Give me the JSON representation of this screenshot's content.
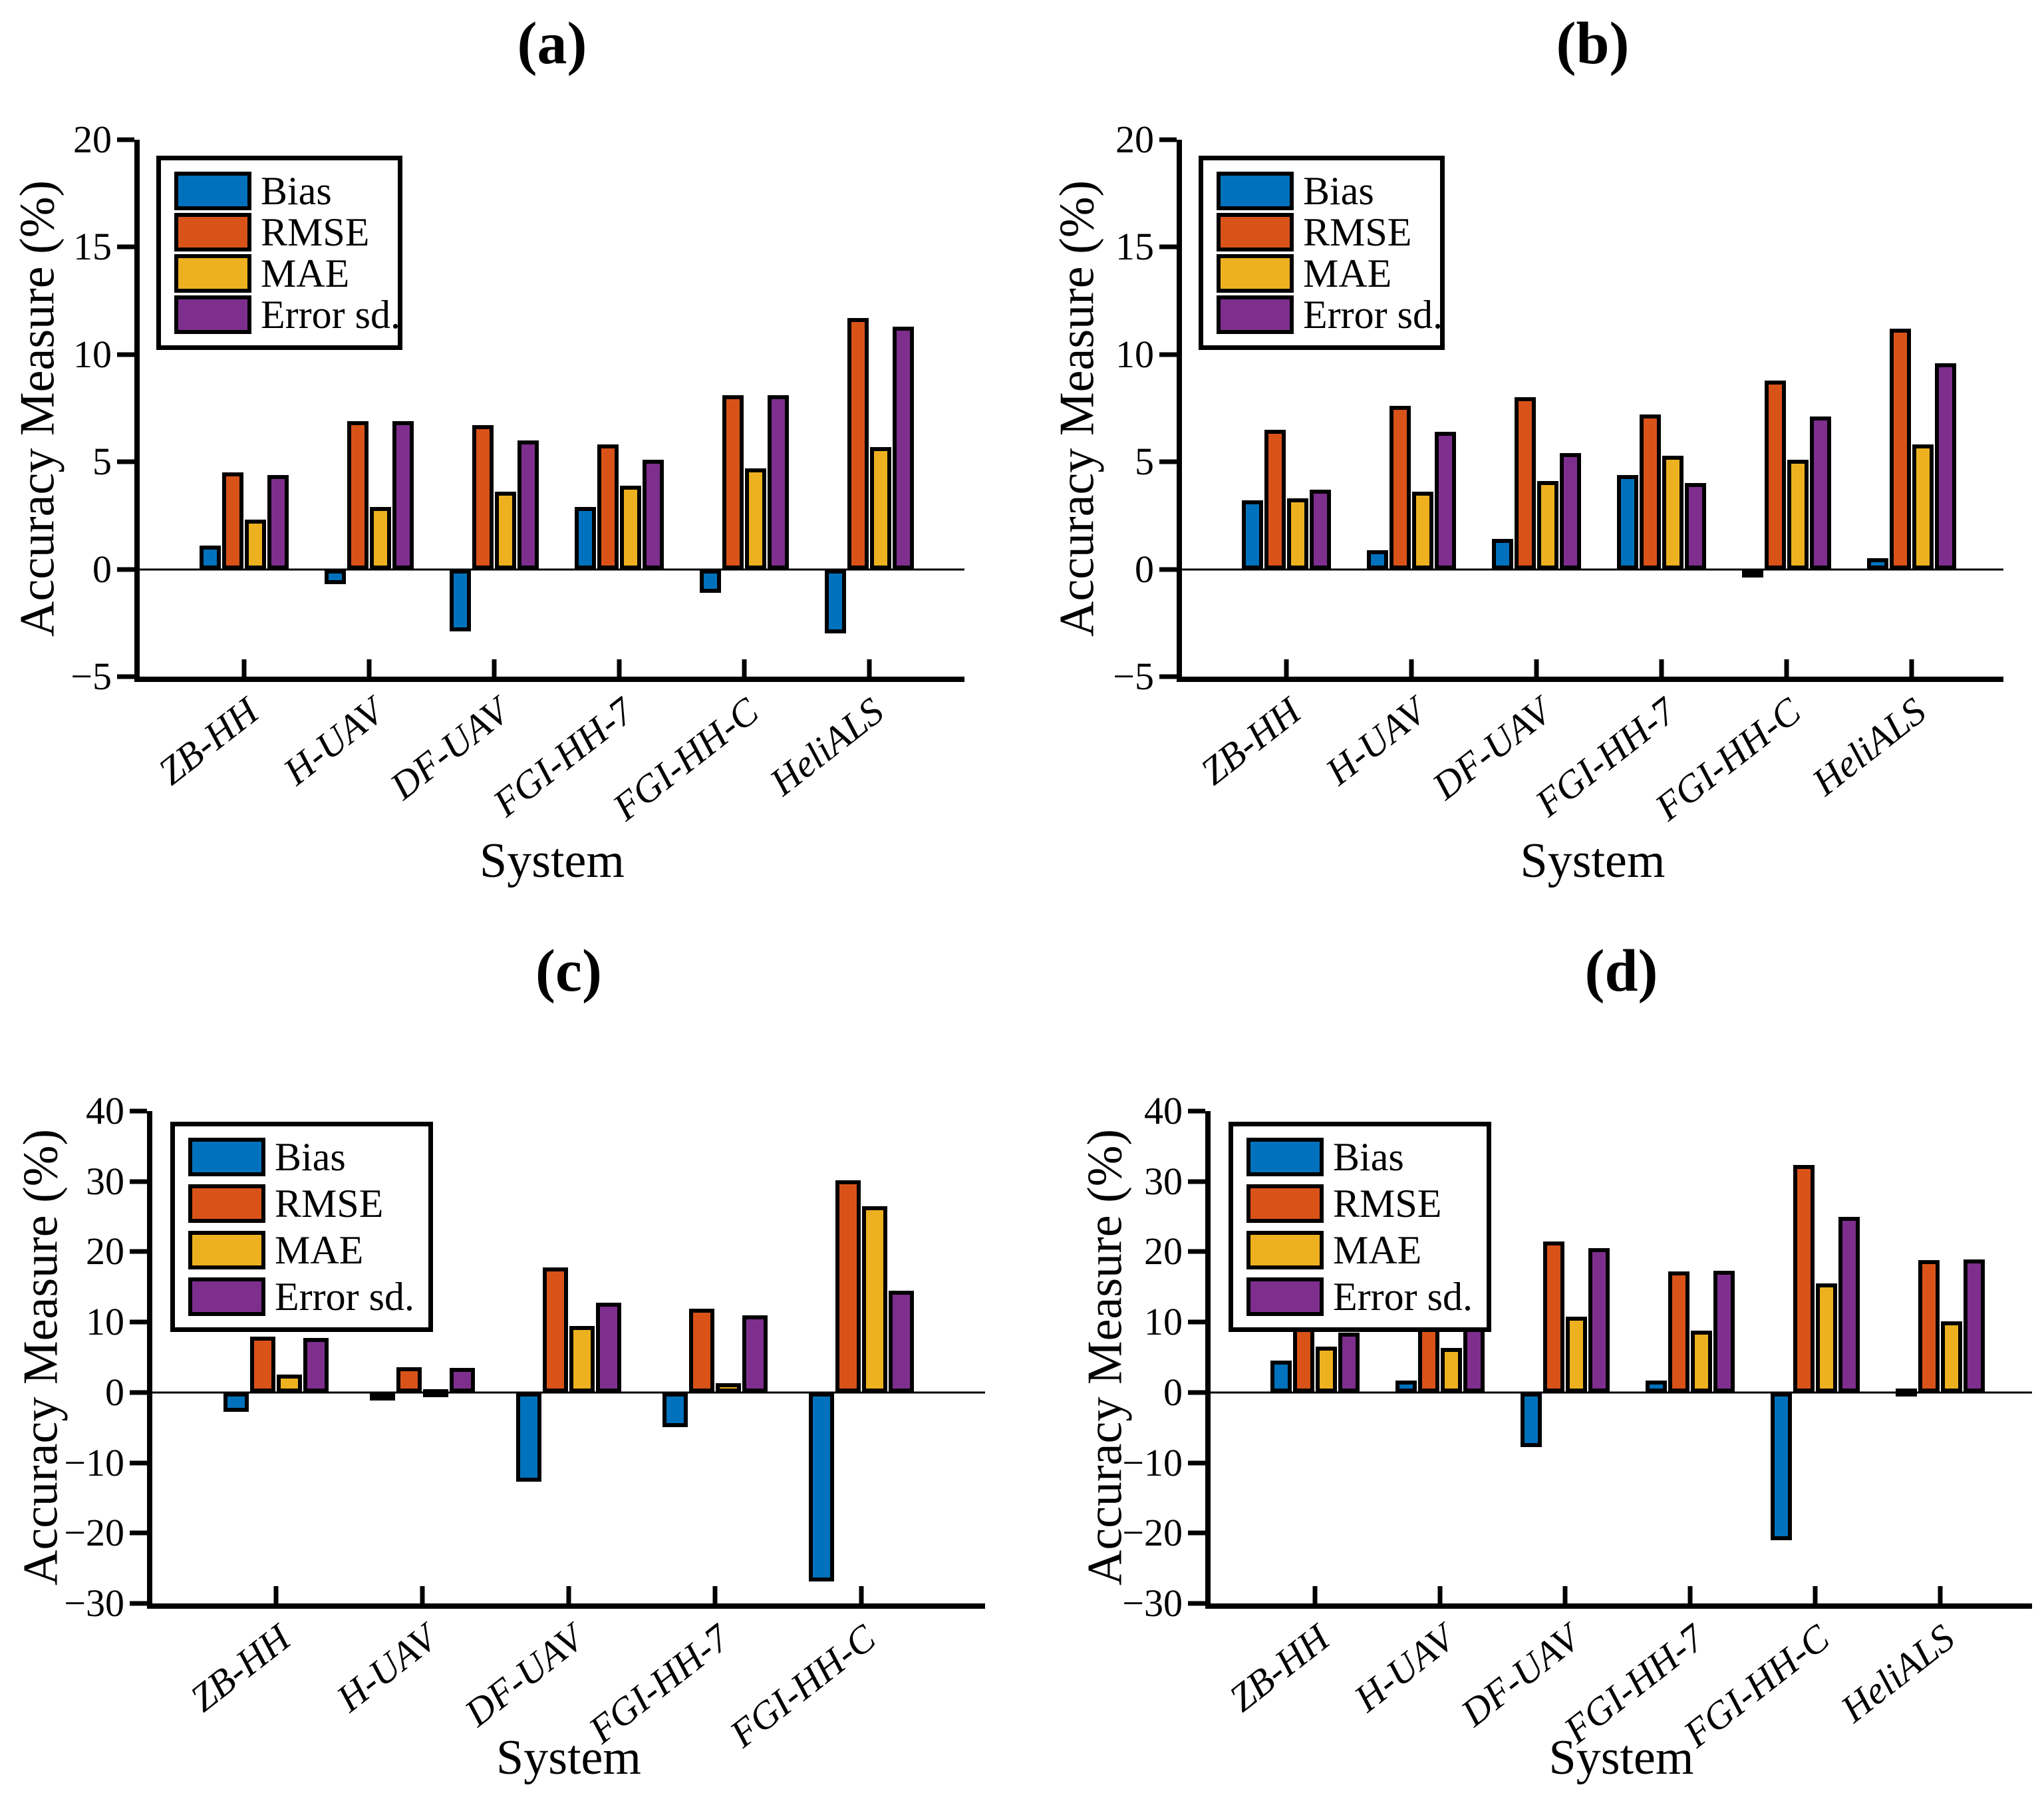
{
  "figure": {
    "background": "#ffffff",
    "axis_color": "#000000",
    "panel_count": 4
  },
  "chart_data": [
    {
      "type": "bar",
      "title": "(a)",
      "xlabel": "System",
      "ylabel": "Accuracy Measure (%)",
      "ylim": [
        -5,
        20
      ],
      "ytick_step": 5,
      "grid": false,
      "legend_position": "top-left",
      "categories": [
        "ZB-HH",
        "H-UAV",
        "DF-UAV",
        "FGI-HH-7",
        "FGI-HH-C",
        "HeliALS"
      ],
      "series": [
        {
          "name": "Bias",
          "color": "#0072BD",
          "values": [
            1.1,
            -0.7,
            -2.9,
            2.9,
            -1.1,
            -3.0
          ]
        },
        {
          "name": "RMSE",
          "color": "#D95319",
          "values": [
            4.5,
            6.9,
            6.7,
            5.8,
            8.1,
            11.7
          ]
        },
        {
          "name": "MAE",
          "color": "#EDB120",
          "values": [
            2.3,
            2.9,
            3.6,
            3.9,
            4.7,
            5.7
          ]
        },
        {
          "name": "Error sd.",
          "color": "#7E2F8E",
          "values": [
            4.4,
            6.9,
            6.0,
            5.1,
            8.1,
            11.3
          ]
        }
      ]
    },
    {
      "type": "bar",
      "title": "(b)",
      "xlabel": "System",
      "ylabel": "Accuracy Measure (%)",
      "ylim": [
        -5,
        20
      ],
      "ytick_step": 5,
      "grid": false,
      "legend_position": "top-left",
      "categories": [
        "ZB-HH",
        "H-UAV",
        "DF-UAV",
        "FGI-HH-7",
        "FGI-HH-C",
        "HeliALS"
      ],
      "series": [
        {
          "name": "Bias",
          "color": "#0072BD",
          "values": [
            3.2,
            0.9,
            1.4,
            4.4,
            -0.15,
            0.5
          ]
        },
        {
          "name": "RMSE",
          "color": "#D95319",
          "values": [
            6.5,
            7.6,
            8.0,
            7.2,
            8.8,
            11.2
          ]
        },
        {
          "name": "MAE",
          "color": "#EDB120",
          "values": [
            3.3,
            3.6,
            4.1,
            5.3,
            5.1,
            5.8
          ]
        },
        {
          "name": "Error sd.",
          "color": "#7E2F8E",
          "values": [
            3.7,
            6.4,
            5.4,
            4.0,
            7.1,
            9.6
          ]
        }
      ]
    },
    {
      "type": "bar",
      "title": "(c)",
      "xlabel": "System",
      "ylabel": "Accuracy Measure (%)",
      "ylim": [
        -30,
        40
      ],
      "ytick_step": 10,
      "grid": false,
      "legend_position": "top-left",
      "categories": [
        "ZB-HH",
        "H-UAV",
        "DF-UAV",
        "FGI-HH-7",
        "FGI-HH-C"
      ],
      "series": [
        {
          "name": "Bias",
          "color": "#0072BD",
          "values": [
            -2.8,
            -1.0,
            -12.7,
            -4.9,
            -26.9
          ]
        },
        {
          "name": "RMSE",
          "color": "#D95319",
          "values": [
            7.9,
            3.6,
            17.8,
            11.9,
            30.2
          ]
        },
        {
          "name": "MAE",
          "color": "#EDB120",
          "values": [
            2.5,
            0.5,
            9.4,
            1.3,
            26.5
          ]
        },
        {
          "name": "Error sd.",
          "color": "#7E2F8E",
          "values": [
            7.7,
            3.5,
            12.8,
            11.0,
            14.5
          ]
        }
      ]
    },
    {
      "type": "bar",
      "title": "(d)",
      "xlabel": "System",
      "ylabel": "Accuracy Measure (%)",
      "ylim": [
        -30,
        40
      ],
      "ytick_step": 10,
      "grid": false,
      "legend_position": "top-left",
      "categories": [
        "ZB-HH",
        "H-UAV",
        "DF-UAV",
        "FGI-HH-7",
        "FGI-HH-C",
        "HeliALS"
      ],
      "series": [
        {
          "name": "Bias",
          "color": "#0072BD",
          "values": [
            4.5,
            1.7,
            -7.8,
            1.7,
            -21.0,
            0.6
          ]
        },
        {
          "name": "RMSE",
          "color": "#D95319",
          "values": [
            9.7,
            11.5,
            21.5,
            17.2,
            32.3,
            18.8
          ]
        },
        {
          "name": "MAE",
          "color": "#EDB120",
          "values": [
            6.5,
            6.3,
            10.8,
            8.8,
            15.5,
            10.1
          ]
        },
        {
          "name": "Error sd.",
          "color": "#7E2F8E",
          "values": [
            8.5,
            11.4,
            20.5,
            17.3,
            25.0,
            18.9
          ]
        }
      ]
    }
  ]
}
